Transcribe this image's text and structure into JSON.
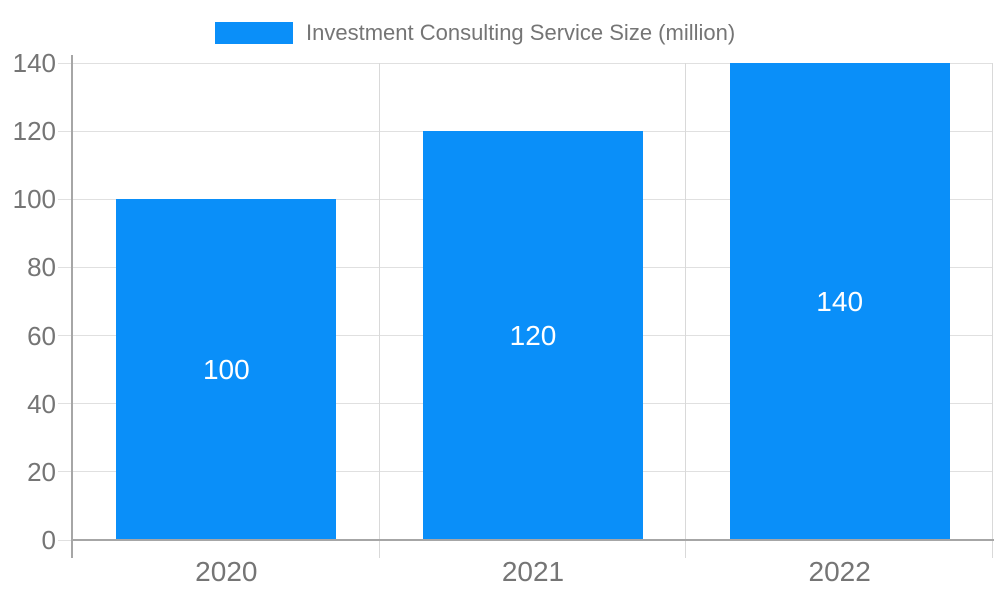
{
  "legend": {
    "label": "Investment Consulting Service Size (million)"
  },
  "chart_data": {
    "type": "bar",
    "title": "Investment Consulting Service Size (million)",
    "categories": [
      "2020",
      "2021",
      "2022"
    ],
    "values": [
      100,
      120,
      140
    ],
    "data_labels": [
      "100",
      "120",
      "140"
    ],
    "xlabel": "",
    "ylabel": "",
    "ylim": [
      0,
      140
    ],
    "y_ticks": [
      0,
      20,
      40,
      60,
      80,
      100,
      120,
      140
    ],
    "grid": true,
    "legend_position": "top-center",
    "colors": {
      "bar": "#0a8ff9",
      "bar_label": "#ffffff",
      "axis": "#a6a6a6",
      "gridline": "#e0e0e0",
      "separator": "#d9d9d9",
      "text": "#757575",
      "background": "#ffffff"
    }
  }
}
